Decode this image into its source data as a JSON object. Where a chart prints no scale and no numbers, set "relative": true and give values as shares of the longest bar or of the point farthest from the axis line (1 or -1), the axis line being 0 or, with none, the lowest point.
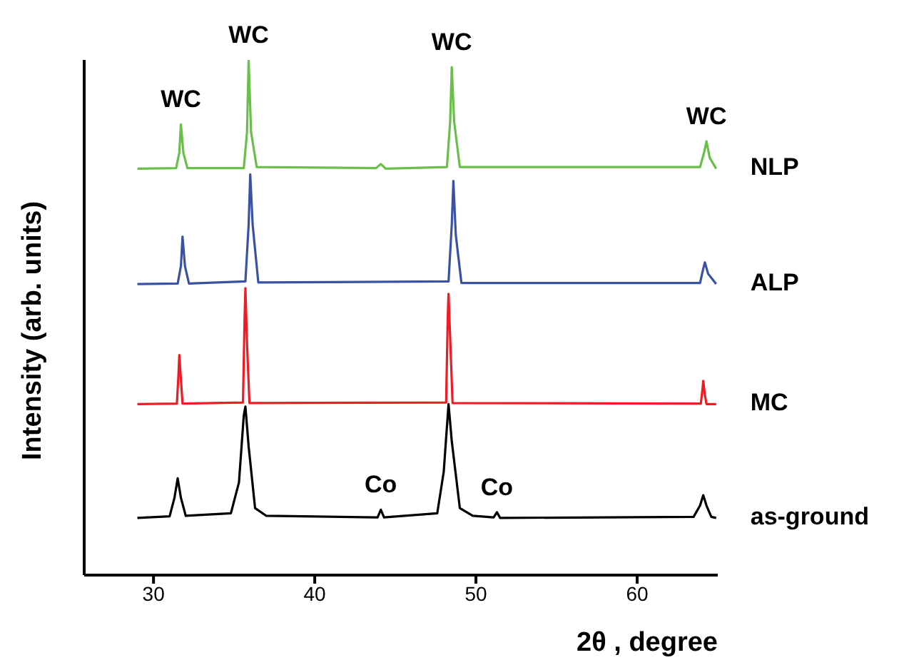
{
  "chart_data": {
    "type": "line",
    "xlabel": "2θ , degree",
    "ylabel": "Intensity (arb. units)",
    "relative": true,
    "xlim": [
      25.7,
      65
    ],
    "xticks": [
      30,
      40,
      50,
      60
    ],
    "tick_labels": "x",
    "grid": false,
    "legend": false,
    "marker": "none",
    "line_style": "solid",
    "series": [
      {
        "name": "NLP",
        "color": "#6abf4b",
        "x": [
          29,
          31.4,
          31.6,
          31.7,
          31.85,
          32.1,
          35.6,
          35.8,
          35.9,
          36.05,
          36.4,
          43.8,
          44.1,
          44.4,
          48.2,
          48.4,
          48.5,
          48.65,
          49.0,
          63.9,
          64.15,
          64.3,
          64.5,
          64.9
        ],
        "values": [
          0.789,
          0.79,
          0.82,
          0.875,
          0.82,
          0.79,
          0.79,
          0.86,
          1.0,
          0.86,
          0.792,
          0.79,
          0.798,
          0.789,
          0.792,
          0.88,
          0.986,
          0.88,
          0.792,
          0.792,
          0.82,
          0.842,
          0.81,
          0.789
        ]
      },
      {
        "name": "ALP",
        "color": "#3a52a3",
        "x": [
          29,
          31.5,
          31.7,
          31.8,
          31.95,
          32.2,
          35.7,
          35.9,
          36.0,
          36.15,
          36.5,
          48.3,
          48.5,
          48.6,
          48.75,
          49.1,
          63.9,
          64.1,
          64.2,
          64.4,
          64.9
        ],
        "values": [
          0.565,
          0.566,
          0.6,
          0.657,
          0.6,
          0.566,
          0.57,
          0.68,
          0.778,
          0.68,
          0.568,
          0.57,
          0.68,
          0.765,
          0.66,
          0.567,
          0.567,
          0.595,
          0.607,
          0.585,
          0.565
        ]
      },
      {
        "name": "MC",
        "color": "#ee1c24",
        "x": [
          29,
          31.45,
          31.55,
          31.6,
          31.7,
          31.8,
          35.55,
          35.65,
          35.7,
          35.8,
          35.95,
          48.15,
          48.25,
          48.3,
          48.4,
          48.55,
          63.95,
          64.05,
          64.1,
          64.2,
          64.3,
          64.9
        ],
        "values": [
          0.332,
          0.333,
          0.39,
          0.427,
          0.38,
          0.333,
          0.335,
          0.5,
          0.557,
          0.45,
          0.334,
          0.335,
          0.5,
          0.546,
          0.46,
          0.334,
          0.333,
          0.36,
          0.377,
          0.35,
          0.332,
          0.332
        ]
      },
      {
        "name": "as-ground",
        "color": "#000000",
        "x": [
          29,
          31.0,
          31.3,
          31.5,
          31.7,
          32.0,
          34.8,
          35.3,
          35.6,
          35.7,
          35.9,
          36.3,
          37,
          43.9,
          44.1,
          44.3,
          47.6,
          48.0,
          48.3,
          48.5,
          49.0,
          49.8,
          51.1,
          51.3,
          51.5,
          63.5,
          63.9,
          64.1,
          64.3,
          64.6,
          64.9
        ],
        "values": [
          0.111,
          0.114,
          0.15,
          0.188,
          0.15,
          0.115,
          0.12,
          0.18,
          0.31,
          0.327,
          0.25,
          0.13,
          0.115,
          0.112,
          0.127,
          0.112,
          0.12,
          0.2,
          0.332,
          0.26,
          0.13,
          0.115,
          0.112,
          0.122,
          0.111,
          0.113,
          0.135,
          0.155,
          0.135,
          0.113,
          0.111
        ]
      }
    ],
    "annotations": [
      {
        "text": "WC",
        "x": 31.7,
        "y": 0.875
      },
      {
        "text": "WC",
        "x": 35.9,
        "y": 1.0
      },
      {
        "text": "WC",
        "x": 48.5,
        "y": 0.986
      },
      {
        "text": "WC",
        "x": 64.3,
        "y": 0.842
      },
      {
        "text": "Co",
        "x": 44.1,
        "y": 0.127
      },
      {
        "text": "Co",
        "x": 51.3,
        "y": 0.122
      }
    ]
  }
}
